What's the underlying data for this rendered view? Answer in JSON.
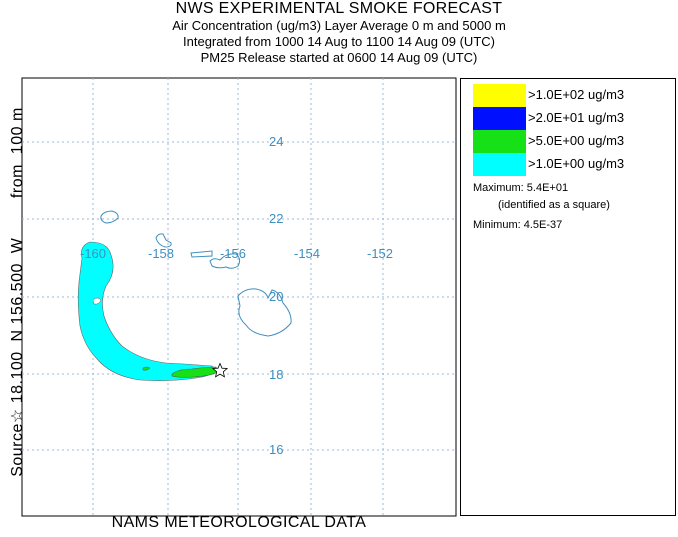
{
  "header": {
    "title": "NWS EXPERIMENTAL SMOKE FORECAST",
    "line2": "Air Concentration (ug/m3) Layer Average    0 m and  5000 m",
    "line3": "Integrated from 1000 14 Aug to 1100 14 Aug 09 (UTC)",
    "line4": "PM25 Release started at 0600 14 Aug 09 (UTC)"
  },
  "side_label": "Source☆ 18.100  N 156.500  W        from  100 m",
  "footer": "NAMS METEOROLOGICAL DATA",
  "map": {
    "lon_labels": [
      "-160",
      "-158",
      "-156",
      "-154",
      "-152"
    ],
    "lat_labels": [
      "24",
      "22",
      "20",
      "18",
      "16"
    ],
    "grid_color": "#9ab8d6",
    "label_color": "#3f8fc0",
    "coast_color": "#3f8fc0"
  },
  "legend": {
    "entries": [
      {
        "label": ">1.0E+02 ug/m3",
        "color": "#ffff00"
      },
      {
        "label": ">2.0E+01 ug/m3",
        "color": "#0010ff"
      },
      {
        "label": ">5.0E+00 ug/m3",
        "color": "#16e016"
      },
      {
        "label": ">1.0E+00 ug/m3",
        "color": "#00ffff"
      }
    ],
    "maximum_label": "Maximum: 5.4E+01",
    "maximum_note": "(identified as a square)",
    "minimum_label": "Minimum: 4.5E-37"
  }
}
